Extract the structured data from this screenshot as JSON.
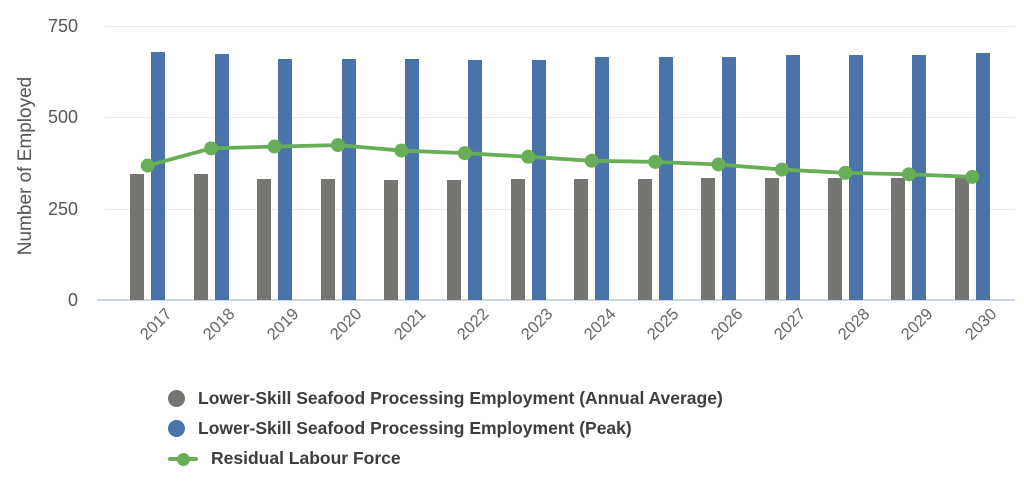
{
  "chart_data": {
    "type": "bar",
    "title": "",
    "xlabel": "",
    "ylabel": "Number of Employed",
    "ylim": [
      0,
      750
    ],
    "y_ticks": [
      0,
      250,
      500,
      750
    ],
    "grid": true,
    "legend_position": "bottom-left",
    "categories": [
      "2017",
      "2018",
      "2019",
      "2020",
      "2021",
      "2022",
      "2023",
      "2024",
      "2025",
      "2026",
      "2027",
      "2028",
      "2029",
      "2030"
    ],
    "series": [
      {
        "name": "Lower-Skill Seafood Processing Employment (Annual Average)",
        "type": "bar",
        "color": "#757572",
        "values": [
          345,
          344,
          331,
          330,
          329,
          329,
          330,
          332,
          332,
          333,
          334,
          334,
          335,
          335
        ]
      },
      {
        "name": "Lower-Skill Seafood Processing Employment (Peak)",
        "type": "bar",
        "color": "#4A73A8",
        "values": [
          678,
          673,
          661,
          660,
          659,
          658,
          658,
          664,
          665,
          666,
          671,
          670,
          670,
          676
        ]
      },
      {
        "name": "Residual Labour Force",
        "type": "line",
        "color": "#68AE59",
        "values": [
          368,
          415,
          420,
          424,
          409,
          402,
          392,
          381,
          378,
          371,
          357,
          348,
          344,
          337
        ]
      }
    ]
  },
  "colors": {
    "gridline": "#ebebeb",
    "baseline": "#ccd7e8",
    "tick_label": "#565656",
    "axis_title": "#565656",
    "x_label": "#666666",
    "legend_text": "#3d3d3d"
  }
}
